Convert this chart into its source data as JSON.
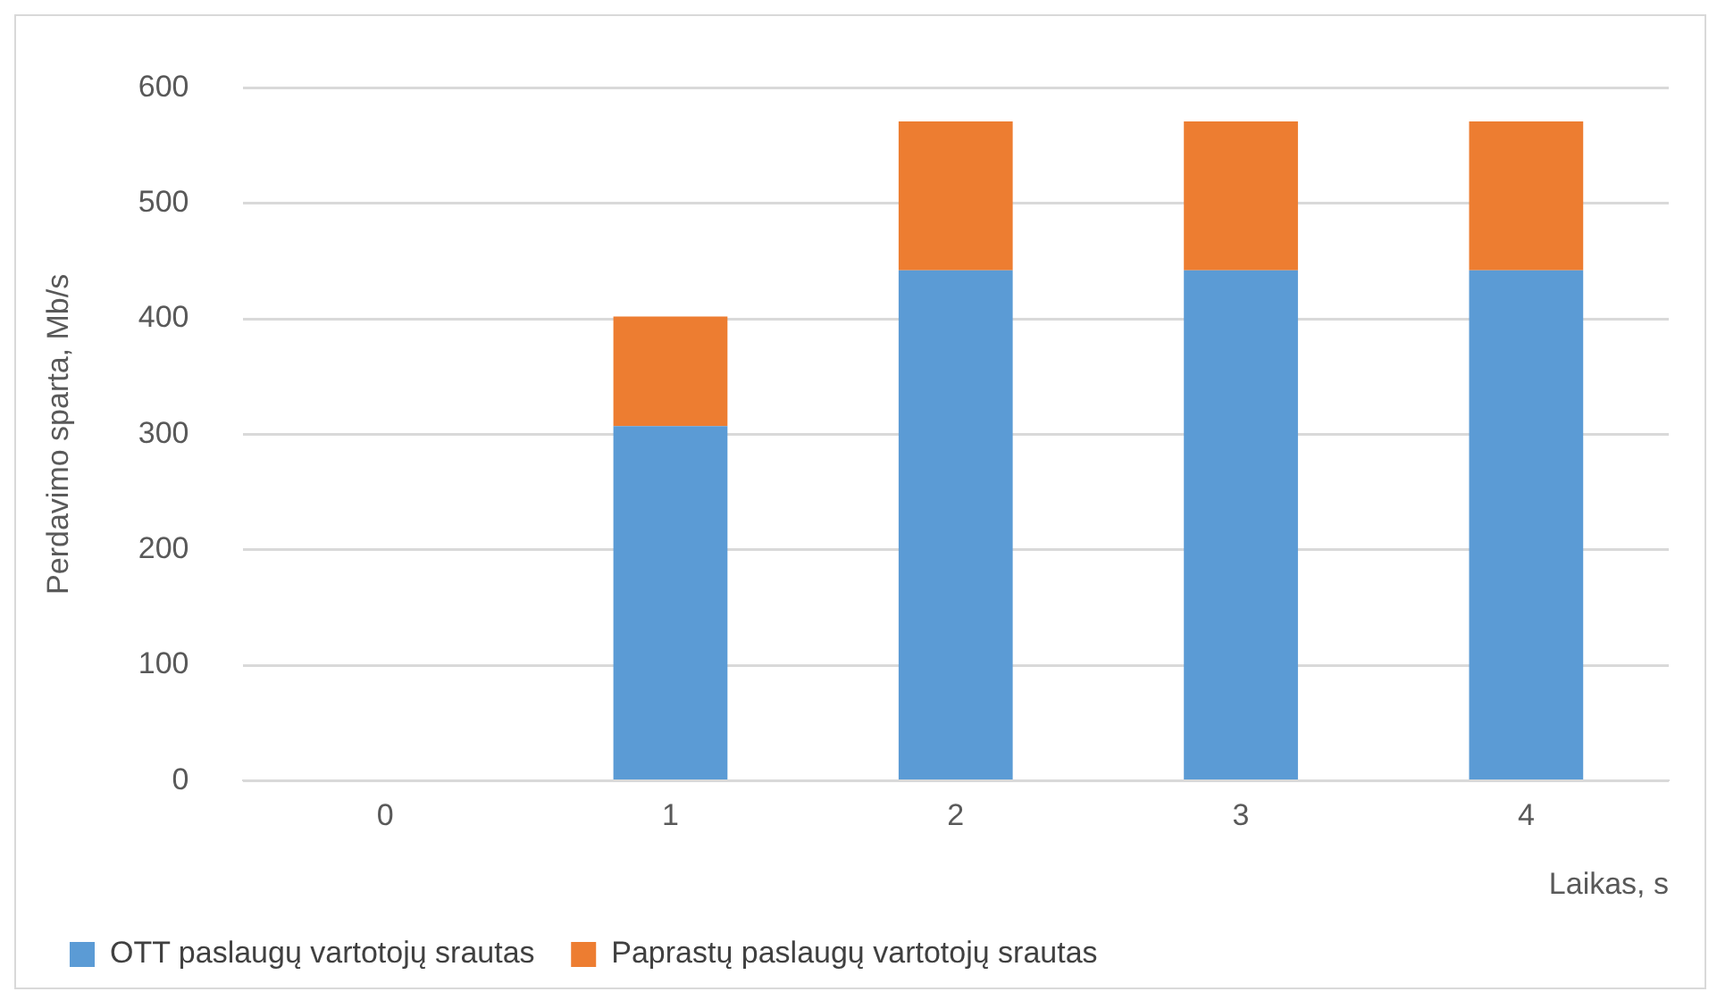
{
  "chart_data": {
    "type": "bar",
    "stacked": true,
    "xlabel": "Laikas, s",
    "ylabel": "Perdavimo sparta, Mb/s",
    "categories": [
      "0",
      "1",
      "2",
      "3",
      "4"
    ],
    "series": [
      {
        "name": "OTT paslaugų vartotojų srautas",
        "color": "#5b9bd5",
        "values": [
          0,
          307,
          442,
          442,
          442
        ]
      },
      {
        "name": "Paprastų paslaugų vartotojų srautas",
        "color": "#ed7d31",
        "values": [
          0,
          95,
          129,
          129,
          129
        ]
      }
    ],
    "ylim": [
      0,
      600
    ],
    "yticks": [
      0,
      100,
      200,
      300,
      400,
      500,
      600
    ],
    "grid": "y",
    "legend": "bottom left"
  }
}
